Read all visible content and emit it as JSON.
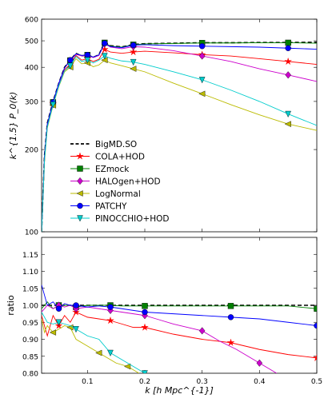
{
  "chart_data": [
    {
      "type": "line",
      "panel": "top",
      "ylabel": "k^{1.5} P_0(k)",
      "yscale": "log",
      "ylim": [
        100,
        600
      ],
      "xlim": [
        0.02,
        0.5
      ],
      "yticks": [
        100,
        200,
        300,
        400,
        500,
        600
      ],
      "ytick_labels": [
        "100",
        "200",
        "300",
        "400",
        "500",
        "600"
      ],
      "grid": false,
      "legend_position": "lower-left",
      "series": [
        {
          "name": "BigMD.SO",
          "color": "#000000",
          "dashed": true,
          "marker": "none",
          "x": [
            0.02,
            0.025,
            0.03,
            0.04,
            0.05,
            0.06,
            0.07,
            0.08,
            0.09,
            0.1,
            0.11,
            0.12,
            0.13,
            0.14,
            0.16,
            0.18,
            0.2,
            0.25,
            0.3,
            0.35,
            0.4,
            0.45,
            0.5
          ],
          "y": [
            100,
            190,
            250,
            300,
            350,
            400,
            425,
            450,
            440,
            445,
            435,
            445,
            495,
            480,
            475,
            485,
            488,
            490,
            492,
            492,
            493,
            493,
            494
          ]
        },
        {
          "name": "COLA+HOD",
          "color": "#ff0000",
          "marker": "star",
          "x": [
            0.02,
            0.025,
            0.03,
            0.04,
            0.05,
            0.06,
            0.07,
            0.08,
            0.09,
            0.1,
            0.11,
            0.12,
            0.13,
            0.14,
            0.16,
            0.18,
            0.2,
            0.25,
            0.3,
            0.35,
            0.4,
            0.45,
            0.5
          ],
          "y": [
            100,
            185,
            245,
            295,
            345,
            392,
            410,
            442,
            425,
            430,
            420,
            428,
            465,
            455,
            450,
            455,
            458,
            452,
            445,
            440,
            430,
            420,
            410
          ]
        },
        {
          "name": "EZmock",
          "color": "#008000",
          "marker": "square",
          "x": [
            0.02,
            0.025,
            0.03,
            0.04,
            0.05,
            0.06,
            0.07,
            0.08,
            0.09,
            0.1,
            0.11,
            0.12,
            0.13,
            0.14,
            0.16,
            0.18,
            0.2,
            0.25,
            0.3,
            0.35,
            0.4,
            0.45,
            0.5
          ],
          "y": [
            100,
            188,
            248,
            298,
            348,
            398,
            424,
            448,
            442,
            444,
            436,
            444,
            492,
            478,
            474,
            484,
            487,
            489,
            491,
            491,
            492,
            492,
            490
          ]
        },
        {
          "name": "HALOgen+HOD",
          "color": "#cc00cc",
          "marker": "diamond",
          "x": [
            0.02,
            0.025,
            0.03,
            0.04,
            0.05,
            0.06,
            0.07,
            0.08,
            0.09,
            0.1,
            0.11,
            0.12,
            0.13,
            0.14,
            0.16,
            0.18,
            0.2,
            0.25,
            0.3,
            0.35,
            0.4,
            0.45,
            0.5
          ],
          "y": [
            100,
            186,
            247,
            297,
            347,
            397,
            423,
            446,
            440,
            442,
            434,
            442,
            488,
            474,
            468,
            476,
            474,
            460,
            440,
            420,
            395,
            375,
            355
          ]
        },
        {
          "name": "LogNormal",
          "color": "#bbbb00",
          "marker": "triangle-left",
          "x": [
            0.02,
            0.025,
            0.03,
            0.04,
            0.05,
            0.06,
            0.07,
            0.08,
            0.09,
            0.1,
            0.11,
            0.12,
            0.13,
            0.14,
            0.16,
            0.18,
            0.2,
            0.25,
            0.3,
            0.35,
            0.4,
            0.45,
            0.5
          ],
          "y": [
            100,
            180,
            240,
            290,
            340,
            385,
            400,
            430,
            412,
            415,
            402,
            408,
            425,
            415,
            405,
            395,
            385,
            350,
            320,
            292,
            268,
            248,
            235
          ]
        },
        {
          "name": "PATCHY",
          "color": "#0000ff",
          "marker": "circle",
          "x": [
            0.02,
            0.025,
            0.03,
            0.04,
            0.05,
            0.06,
            0.07,
            0.08,
            0.09,
            0.1,
            0.11,
            0.12,
            0.13,
            0.14,
            0.16,
            0.18,
            0.2,
            0.25,
            0.3,
            0.35,
            0.4,
            0.45,
            0.5
          ],
          "y": [
            100,
            188,
            248,
            298,
            350,
            398,
            425,
            448,
            442,
            444,
            436,
            444,
            490,
            476,
            472,
            482,
            484,
            480,
            478,
            476,
            474,
            470,
            466
          ]
        },
        {
          "name": "PINOCCHIO+HOD",
          "color": "#00cccc",
          "marker": "triangle-down",
          "x": [
            0.02,
            0.025,
            0.03,
            0.04,
            0.05,
            0.06,
            0.07,
            0.08,
            0.09,
            0.1,
            0.11,
            0.12,
            0.13,
            0.14,
            0.16,
            0.18,
            0.2,
            0.25,
            0.3,
            0.35,
            0.4,
            0.45,
            0.5
          ],
          "y": [
            100,
            182,
            242,
            292,
            342,
            388,
            405,
            438,
            420,
            425,
            415,
            425,
            440,
            432,
            422,
            418,
            410,
            385,
            360,
            330,
            300,
            270,
            245
          ]
        }
      ]
    },
    {
      "type": "line",
      "panel": "bottom",
      "xlabel": "k [h Mpc^{-1}]",
      "ylabel": "ratio",
      "xlim": [
        0.02,
        0.5
      ],
      "ylim": [
        0.8,
        1.2
      ],
      "xticks": [
        0.1,
        0.2,
        0.3,
        0.4,
        0.5
      ],
      "xtick_labels": [
        "0.1",
        "0.2",
        "0.3",
        "0.4",
        "0.5"
      ],
      "yticks": [
        0.8,
        0.85,
        0.9,
        0.95,
        1.0,
        1.05,
        1.1,
        1.15
      ],
      "ytick_labels": [
        "0.80",
        "0.85",
        "0.90",
        "0.95",
        "1.00",
        "1.05",
        "1.10",
        "1.15"
      ],
      "grid": false,
      "series": [
        {
          "name": "BigMD.SO",
          "color": "#000000",
          "dashed": true,
          "marker": "none",
          "x": [
            0.02,
            0.05,
            0.1,
            0.15,
            0.2,
            0.25,
            0.3,
            0.35,
            0.4,
            0.45,
            0.5
          ],
          "y": [
            1.0,
            1.0,
            1.0,
            1.0,
            1.0,
            1.0,
            1.0,
            1.0,
            1.0,
            1.0,
            1.0
          ]
        },
        {
          "name": "COLA+HOD",
          "color": "#ff0000",
          "marker": "star",
          "x": [
            0.02,
            0.03,
            0.04,
            0.05,
            0.06,
            0.07,
            0.08,
            0.1,
            0.12,
            0.14,
            0.16,
            0.18,
            0.2,
            0.25,
            0.3,
            0.35,
            0.4,
            0.45,
            0.5
          ],
          "y": [
            0.97,
            0.91,
            0.97,
            0.94,
            0.97,
            0.95,
            0.98,
            0.965,
            0.96,
            0.955,
            0.945,
            0.935,
            0.935,
            0.915,
            0.9,
            0.89,
            0.87,
            0.855,
            0.845
          ]
        },
        {
          "name": "EZmock",
          "color": "#008000",
          "marker": "square",
          "x": [
            0.02,
            0.03,
            0.04,
            0.05,
            0.06,
            0.07,
            0.08,
            0.1,
            0.12,
            0.14,
            0.16,
            0.18,
            0.2,
            0.25,
            0.3,
            0.35,
            0.4,
            0.45,
            0.5
          ],
          "y": [
            0.99,
            1.01,
            0.99,
            1.0,
            1.0,
            1.0,
            0.995,
            1.0,
            1.0,
            1.0,
            0.998,
            0.998,
            0.998,
            0.998,
            0.998,
            0.998,
            0.998,
            0.998,
            0.99
          ]
        },
        {
          "name": "HALOgen+HOD",
          "color": "#cc00cc",
          "marker": "diamond",
          "x": [
            0.02,
            0.03,
            0.04,
            0.05,
            0.06,
            0.07,
            0.08,
            0.1,
            0.12,
            0.14,
            0.16,
            0.18,
            0.2,
            0.22,
            0.25,
            0.3,
            0.33,
            0.36,
            0.4,
            0.43
          ],
          "y": [
            0.98,
            1.0,
            0.99,
            1.0,
            0.995,
            1.0,
            0.99,
            0.995,
            0.99,
            0.985,
            0.98,
            0.975,
            0.97,
            0.96,
            0.945,
            0.925,
            0.895,
            0.87,
            0.83,
            0.8
          ]
        },
        {
          "name": "LogNormal",
          "color": "#bbbb00",
          "marker": "triangle-left",
          "x": [
            0.02,
            0.025,
            0.03,
            0.04,
            0.05,
            0.06,
            0.07,
            0.08,
            0.1,
            0.12,
            0.13,
            0.15,
            0.17,
            0.19
          ],
          "y": [
            0.96,
            0.92,
            0.94,
            0.92,
            0.93,
            0.94,
            0.935,
            0.9,
            0.88,
            0.86,
            0.85,
            0.83,
            0.82,
            0.8
          ]
        },
        {
          "name": "PATCHY",
          "color": "#0000ff",
          "marker": "circle",
          "x": [
            0.02,
            0.03,
            0.04,
            0.05,
            0.06,
            0.07,
            0.08,
            0.1,
            0.12,
            0.14,
            0.16,
            0.18,
            0.2,
            0.25,
            0.3,
            0.35,
            0.4,
            0.45,
            0.5
          ],
          "y": [
            1.06,
            1.0,
            1.01,
            0.99,
            1.005,
            1.0,
            1.0,
            0.995,
            0.998,
            0.995,
            0.99,
            0.985,
            0.98,
            0.975,
            0.97,
            0.965,
            0.96,
            0.95,
            0.94
          ]
        },
        {
          "name": "PINOCCHIO+HOD",
          "color": "#00cccc",
          "marker": "triangle-down",
          "x": [
            0.02,
            0.03,
            0.04,
            0.05,
            0.06,
            0.07,
            0.08,
            0.1,
            0.12,
            0.14,
            0.16,
            0.18,
            0.2
          ],
          "y": [
            0.98,
            0.95,
            0.945,
            0.95,
            0.945,
            0.94,
            0.93,
            0.91,
            0.9,
            0.86,
            0.84,
            0.82,
            0.8
          ]
        }
      ]
    }
  ]
}
